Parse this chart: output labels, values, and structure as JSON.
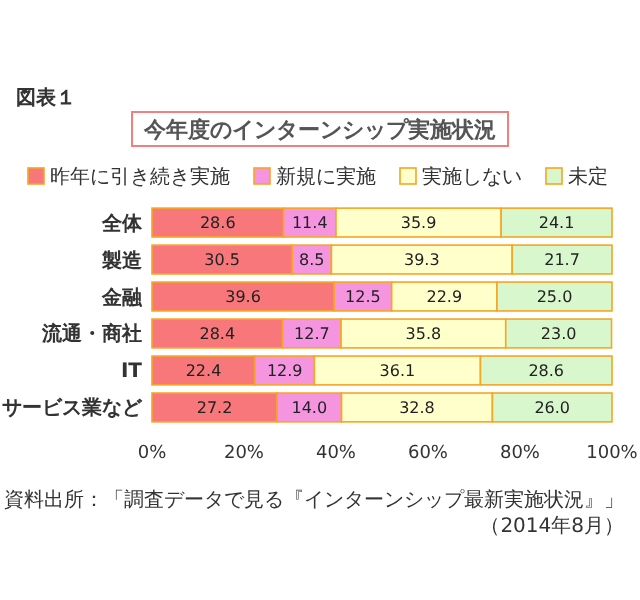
{
  "chart_data": {
    "type": "bar",
    "orientation": "horizontal",
    "stacked": true,
    "title": "今年度のインターンシップ実施状況",
    "categories": [
      "全体",
      "製造",
      "金融",
      "流通・商社",
      "IT",
      "サービス業など"
    ],
    "series": [
      {
        "name": "昨年に引き続き実施",
        "color": "#f7777a",
        "values": [
          28.6,
          30.5,
          39.6,
          28.4,
          22.4,
          27.2
        ],
        "value_labels": [
          "28.6",
          "30.5",
          "39.6",
          "28.4",
          "22.4",
          "27.2"
        ]
      },
      {
        "name": "新規に実施",
        "color": "#f595e0",
        "values": [
          11.4,
          8.5,
          12.5,
          12.7,
          12.9,
          14.0
        ],
        "value_labels": [
          "11.4",
          "8.5",
          "12.5",
          "12.7",
          "12.9",
          "14.0"
        ]
      },
      {
        "name": "実施しない",
        "color": "#ffffcc",
        "values": [
          35.9,
          39.3,
          22.9,
          35.8,
          36.1,
          32.8
        ],
        "value_labels": [
          "35.9",
          "39.3",
          "22.9",
          "35.8",
          "36.1",
          "32.8"
        ]
      },
      {
        "name": "未定",
        "color": "#d9f7cc",
        "values": [
          24.1,
          21.7,
          25.0,
          23.0,
          28.6,
          26.0
        ],
        "value_labels": [
          "24.1",
          "21.7",
          "25.0",
          "23.0",
          "28.6",
          "26.0"
        ]
      }
    ],
    "xlim": [
      0,
      100
    ],
    "xticks": [
      {
        "value": 0,
        "label": "0%"
      },
      {
        "value": 20,
        "label": "20%"
      },
      {
        "value": 40,
        "label": "40%"
      },
      {
        "value": 60,
        "label": "60%"
      },
      {
        "value": 80,
        "label": "80%"
      },
      {
        "value": 100,
        "label": "100%"
      }
    ],
    "legend": "top",
    "annotations": [
      "図表１",
      "資料出所：「調査データで見る『インターンシップ最新実施状況』」（2014年8月）"
    ]
  }
}
